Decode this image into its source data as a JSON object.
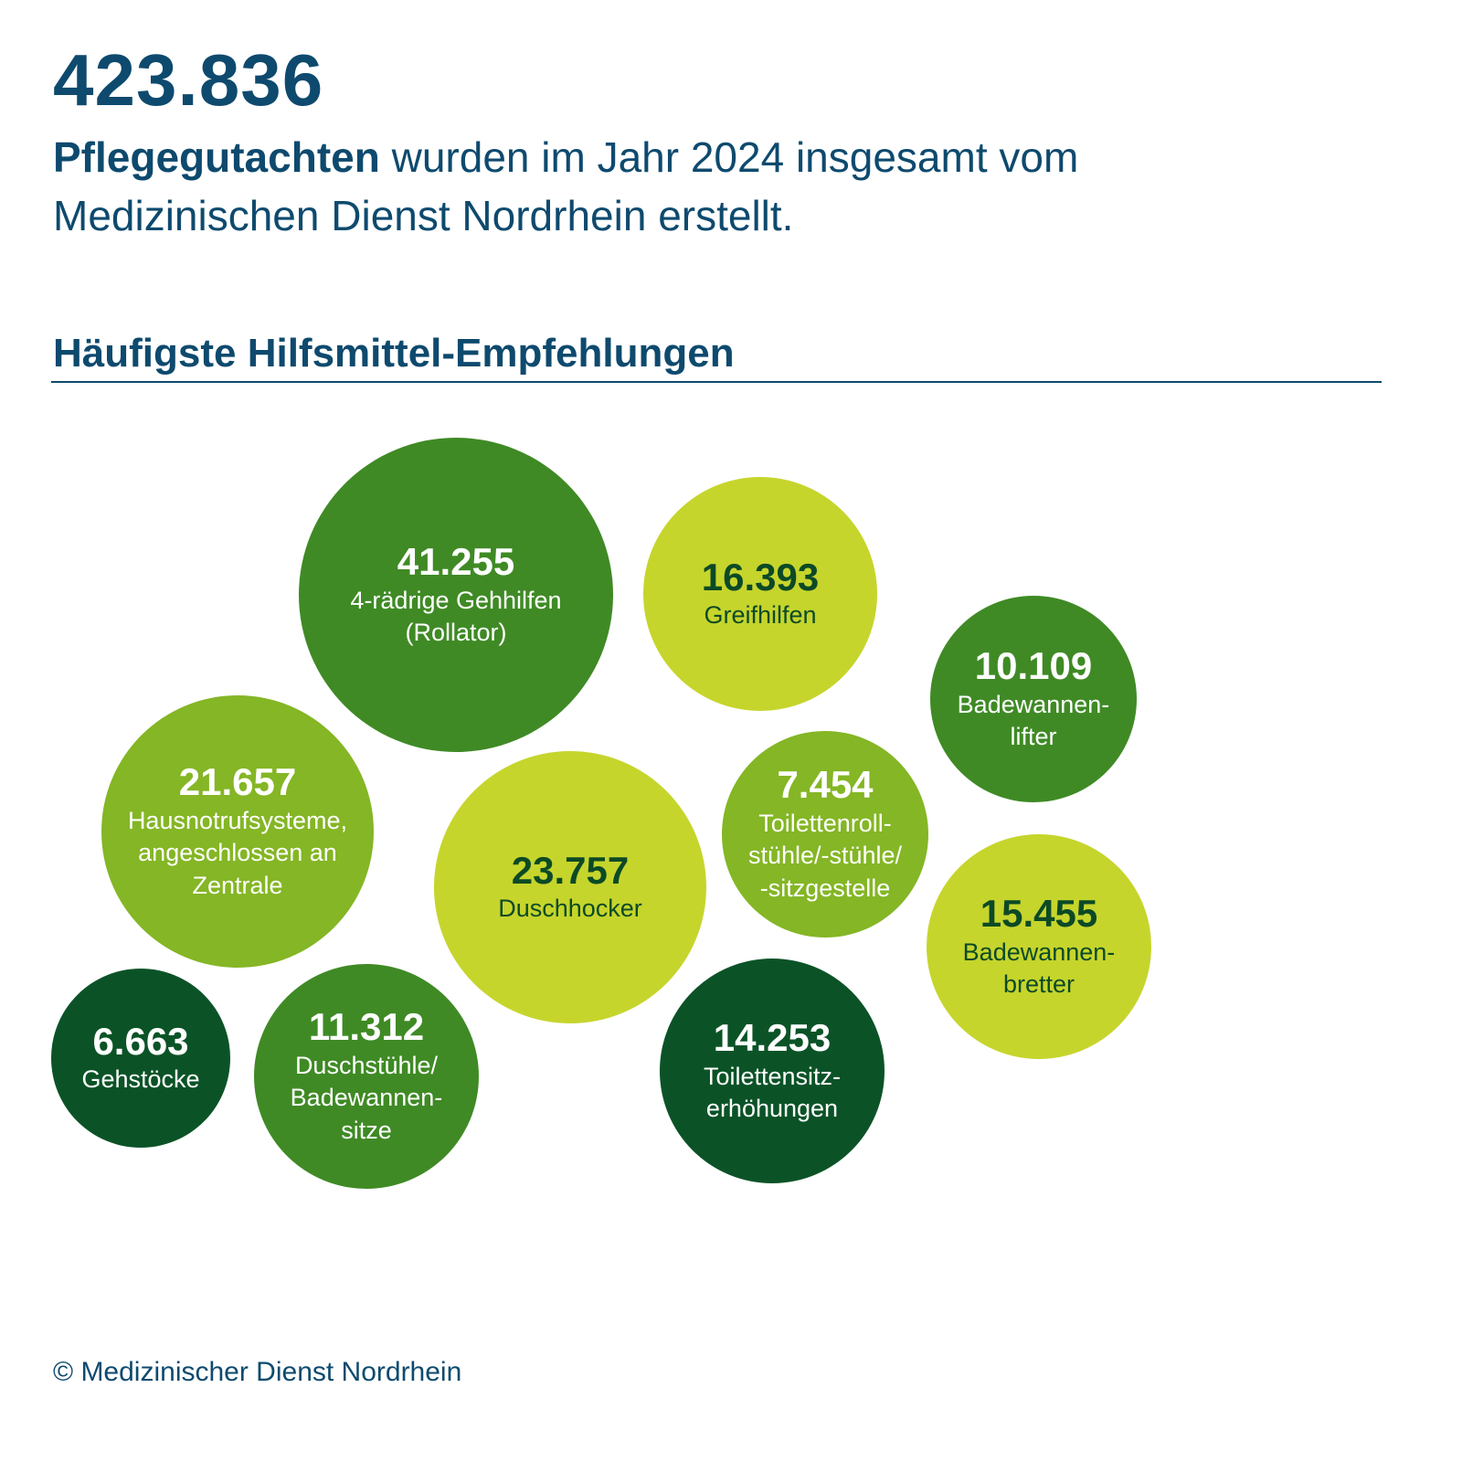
{
  "header": {
    "total": "423.836",
    "intro_bold": "Pflegegutachten",
    "intro_rest": " wurden im Jahr 2024 insgesamt vom Medizinischen Dienst Nordrhein erstellt."
  },
  "section_title": "Häufigste Hilfsmittel-Empfehlungen",
  "footer": "© Medizinischer Dienst Nordrhein",
  "colors": {
    "title_blue": "#0e4a6e",
    "dark_green": "#0b5327",
    "mid_green": "#3f8a25",
    "light_green": "#84b625",
    "lime": "#c6d52c"
  },
  "chart_data": {
    "type": "bubble",
    "title": "Häufigste Hilfsmittel-Empfehlungen",
    "items": [
      {
        "value": "41.255",
        "label": "4-rädrige Gehhilfen\n(Rollator)",
        "color": "#3f8a25",
        "text": "light"
      },
      {
        "value": "16.393",
        "label": "Greifhilfen",
        "color": "#c6d52c",
        "text": "dark"
      },
      {
        "value": "10.109",
        "label": "Badewannen-\nlifter",
        "color": "#3f8a25",
        "text": "light"
      },
      {
        "value": "21.657",
        "label": "Hausnotrufsysteme,\nangeschlossen an\nZentrale",
        "color": "#84b625",
        "text": "light"
      },
      {
        "value": "23.757",
        "label": "Duschhocker",
        "color": "#c6d52c",
        "text": "dark"
      },
      {
        "value": "7.454",
        "label": "Toilettenroll-\nstühle/-stühle/\n-sitzgestelle",
        "color": "#84b625",
        "text": "light"
      },
      {
        "value": "15.455",
        "label": "Badewannen-\nbretter",
        "color": "#c6d52c",
        "text": "dark"
      },
      {
        "value": "6.663",
        "label": "Gehstöcke",
        "color": "#0b5327",
        "text": "light"
      },
      {
        "value": "11.312",
        "label": "Duschstühle/\nBadewannen-\nsitze",
        "color": "#3f8a25",
        "text": "light"
      },
      {
        "value": "14.253",
        "label": "Toilettensitz-\nerhöhungen",
        "color": "#0b5327",
        "text": "light"
      }
    ]
  }
}
